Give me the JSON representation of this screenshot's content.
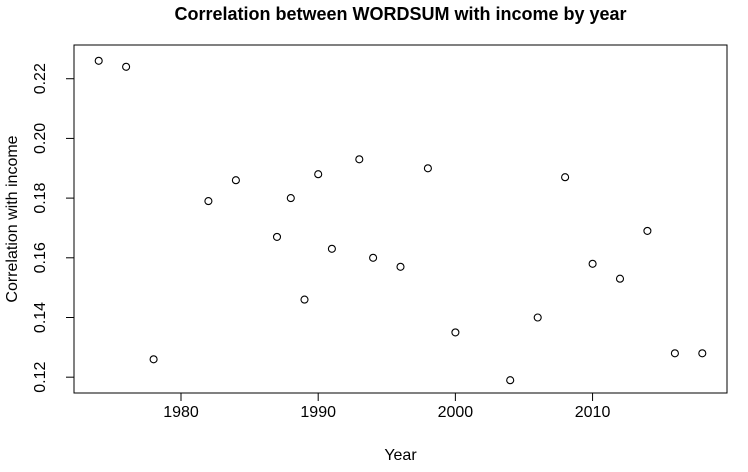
{
  "chart_data": {
    "type": "scatter",
    "title": "Correlation between WORDSUM with income by year",
    "xlabel": "Year",
    "ylabel": "Correlation with income",
    "marker": "open-circle",
    "grid": false,
    "legend": "none",
    "colors": {
      "foreground": "#000000",
      "background": "#ffffff"
    },
    "xlim": [
      1972.2,
      2019.8
    ],
    "ylim": [
      0.1147,
      0.2313
    ],
    "x_tick_values": [
      1980,
      1990,
      2000,
      2010
    ],
    "x_tick_labels": [
      "1980",
      "1990",
      "2000",
      "2010"
    ],
    "y_tick_values": [
      0.12,
      0.14,
      0.16,
      0.18,
      0.2,
      0.22
    ],
    "y_tick_labels": [
      "0.12",
      "0.14",
      "0.16",
      "0.18",
      "0.20",
      "0.22"
    ],
    "series": [
      {
        "name": "correlation-by-year",
        "x": [
          1974,
          1976,
          1978,
          1982,
          1984,
          1987,
          1988,
          1989,
          1990,
          1991,
          1993,
          1994,
          1996,
          1998,
          2000,
          2004,
          2006,
          2008,
          2010,
          2012,
          2014,
          2016,
          2018
        ],
        "y": [
          0.226,
          0.224,
          0.126,
          0.179,
          0.186,
          0.167,
          0.18,
          0.146,
          0.188,
          0.163,
          0.193,
          0.16,
          0.157,
          0.19,
          0.135,
          0.119,
          0.14,
          0.187,
          0.158,
          0.153,
          0.169,
          0.128,
          0.128
        ]
      }
    ]
  }
}
